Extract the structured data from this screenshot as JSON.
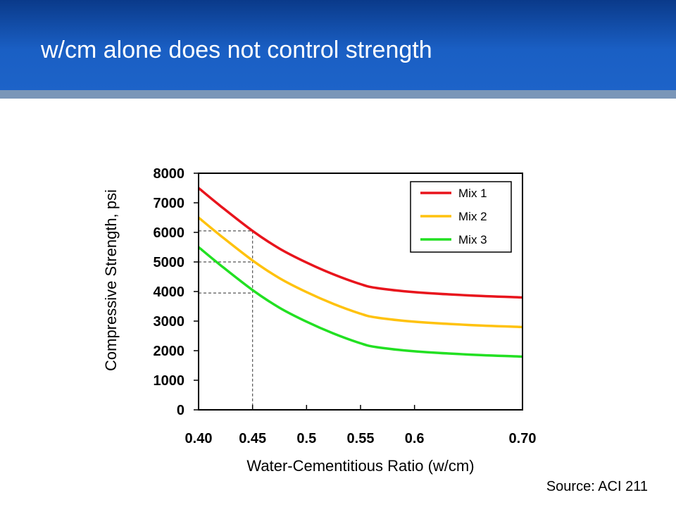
{
  "slide": {
    "title": "w/cm alone does not control strength",
    "source": "Source: ACI 211"
  },
  "colors": {
    "header": "#1a5fc4",
    "mix1": "#e8141c",
    "mix2": "#ffc20e",
    "mix3": "#22e022"
  },
  "chart_data": {
    "type": "line",
    "xlabel": "Water-Cementitious Ratio (w/cm)",
    "ylabel": "Compressive Strength, psi",
    "xlim": [
      0.4,
      0.7
    ],
    "ylim": [
      0,
      8000
    ],
    "x_ticks": [
      0.4,
      0.45,
      0.5,
      0.55,
      0.6,
      0.7
    ],
    "x_tick_labels": [
      "0.40",
      "0.45",
      "0.5",
      "0.55",
      "0.6",
      "0.70"
    ],
    "y_ticks": [
      0,
      1000,
      2000,
      3000,
      4000,
      5000,
      6000,
      7000,
      8000
    ],
    "y_tick_labels": [
      "0",
      "1000",
      "2000",
      "3000",
      "4000",
      "5000",
      "6000",
      "7000",
      "8000"
    ],
    "grid": false,
    "legend_position": "top-right",
    "series": [
      {
        "name": "Mix 1",
        "color": "#e8141c",
        "x": [
          0.4,
          0.42,
          0.45,
          0.475,
          0.5,
          0.525,
          0.55,
          0.565,
          0.6,
          0.65,
          0.7
        ],
        "y": [
          7500,
          6900,
          6050,
          5450,
          4980,
          4580,
          4250,
          4120,
          3980,
          3870,
          3800
        ]
      },
      {
        "name": "Mix 2",
        "color": "#ffc20e",
        "x": [
          0.4,
          0.42,
          0.45,
          0.475,
          0.5,
          0.525,
          0.55,
          0.565,
          0.6,
          0.65,
          0.7
        ],
        "y": [
          6500,
          5900,
          5050,
          4450,
          3980,
          3580,
          3250,
          3120,
          2980,
          2870,
          2800
        ]
      },
      {
        "name": "Mix 3",
        "color": "#22e022",
        "x": [
          0.4,
          0.42,
          0.45,
          0.475,
          0.5,
          0.525,
          0.55,
          0.565,
          0.6,
          0.65,
          0.7
        ],
        "y": [
          5500,
          4900,
          4050,
          3450,
          2980,
          2580,
          2250,
          2120,
          1980,
          1870,
          1800
        ]
      }
    ],
    "reference_lines": {
      "x": 0.45,
      "y": [
        6050,
        5000,
        3950
      ]
    }
  }
}
